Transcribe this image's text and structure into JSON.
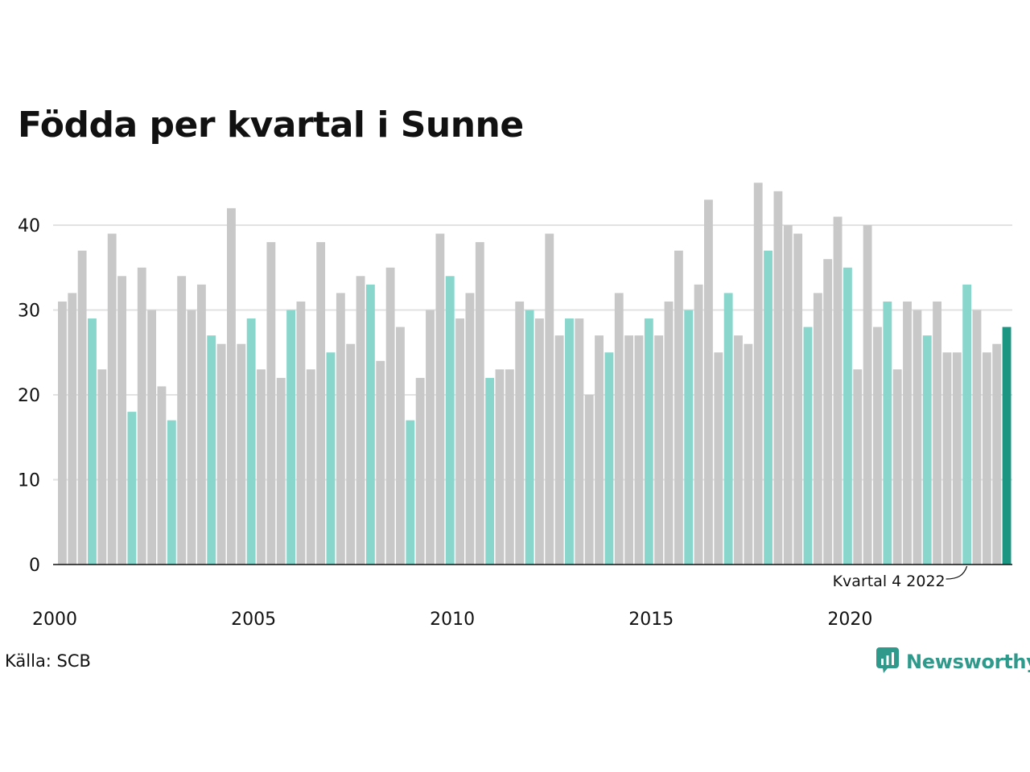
{
  "title": "Födda per kvartal i Sunne",
  "source": "Källa: SCB",
  "brand": {
    "name": "Newsworthy",
    "icon": "newsworthy-logo-icon",
    "color": "#2f9a8c"
  },
  "colors": {
    "default": "#c8c8c8",
    "q4": "#88d6cc",
    "latest": "#1a9683",
    "grid": "#e2e2e2",
    "axis": "#111111"
  },
  "chart_data": {
    "type": "bar",
    "title": "Födda per kvartal i Sunne",
    "xlabel": "",
    "ylabel": "",
    "ylim": [
      0,
      46
    ],
    "yticks": [
      0,
      10,
      20,
      30,
      40
    ],
    "xticks": [
      2000,
      2005,
      2010,
      2015,
      2020
    ],
    "grid": true,
    "first_quarter": "2000-Q1",
    "values": [
      31,
      32,
      37,
      29,
      23,
      39,
      34,
      18,
      35,
      30,
      21,
      17,
      34,
      30,
      33,
      27,
      26,
      42,
      26,
      29,
      23,
      38,
      22,
      30,
      31,
      23,
      38,
      25,
      32,
      26,
      34,
      33,
      24,
      35,
      28,
      17,
      22,
      30,
      39,
      34,
      29,
      32,
      38,
      22,
      23,
      23,
      31,
      30,
      29,
      39,
      27,
      29,
      29,
      20,
      27,
      25,
      32,
      27,
      27,
      29,
      27,
      31,
      37,
      30,
      33,
      43,
      25,
      32,
      27,
      26,
      45,
      37,
      44,
      40,
      39,
      28,
      32,
      36,
      41,
      35,
      23,
      40,
      28,
      31,
      23,
      31,
      30,
      27,
      31,
      25,
      25,
      33,
      30,
      25,
      26,
      28
    ],
    "highlight": "Q4 bars in light teal; latest quarter in dark teal",
    "annotation": "Kvartal 4 2022"
  }
}
